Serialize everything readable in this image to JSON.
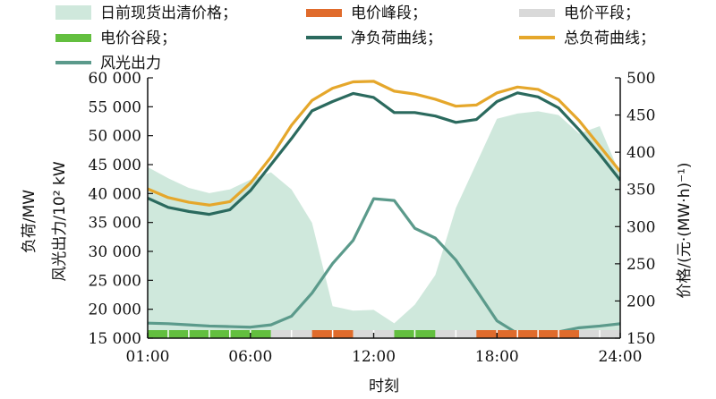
{
  "chart_data": {
    "type": "line",
    "x": [
      "01:00",
      "02:00",
      "03:00",
      "04:00",
      "05:00",
      "06:00",
      "07:00",
      "08:00",
      "09:00",
      "10:00",
      "11:00",
      "12:00",
      "13:00",
      "14:00",
      "15:00",
      "16:00",
      "17:00",
      "18:00",
      "19:00",
      "20:00",
      "21:00",
      "22:00",
      "23:00",
      "24:00"
    ],
    "x_ticks": [
      "01:00",
      "06:00",
      "12:00",
      "18:00",
      "24:00"
    ],
    "xlabel": "时刻",
    "ylabel_left": [
      "负荷/MW",
      "风光出力/10² kW"
    ],
    "ylabel_right": "价格/(元·(MW·h)⁻¹)",
    "ylim_left": [
      15000,
      60000
    ],
    "ylim_right": [
      150,
      500
    ],
    "yticks_left": [
      "15 000",
      "20 000",
      "25 000",
      "30 000",
      "35 000",
      "40 000",
      "45 000",
      "50 000",
      "55 000",
      "60 000"
    ],
    "yticks_right": [
      "150",
      "200",
      "250",
      "300",
      "350",
      "400",
      "450",
      "500"
    ],
    "series": [
      {
        "name": "日前现货出清价格",
        "axis": "right",
        "style": "area",
        "color": "#cfe8dc",
        "values": [
          380,
          365,
          352,
          345,
          350,
          363,
          373,
          350,
          305,
          193,
          187,
          188,
          170,
          195,
          235,
          325,
          385,
          445,
          452,
          455,
          450,
          425,
          435,
          370
        ]
      },
      {
        "name": "净负荷曲线",
        "axis": "left",
        "style": "line",
        "color": "#2b6a5e",
        "values": [
          39200,
          37600,
          36900,
          36400,
          37200,
          40500,
          45000,
          49500,
          54300,
          55900,
          57300,
          56600,
          54000,
          54000,
          53400,
          52300,
          52800,
          55900,
          57400,
          56700,
          54800,
          51000,
          46800,
          42300
        ]
      },
      {
        "name": "总负荷曲线",
        "axis": "left",
        "style": "line",
        "color": "#e5a72b",
        "values": [
          40800,
          39300,
          38500,
          38000,
          38600,
          41800,
          46300,
          51800,
          56100,
          58200,
          59300,
          59400,
          57700,
          57200,
          56300,
          55100,
          55300,
          57400,
          58400,
          58000,
          56200,
          52600,
          48200,
          43800
        ]
      },
      {
        "name": "风光出力",
        "axis": "left",
        "style": "line",
        "color": "#5b9a8b",
        "values": [
          17600,
          17500,
          17300,
          17100,
          17000,
          16900,
          17300,
          18800,
          22800,
          27900,
          31900,
          39100,
          38800,
          34000,
          32300,
          28500,
          23300,
          18000,
          15800,
          15800,
          16100,
          16800,
          17100,
          17500
        ]
      }
    ],
    "price_period_bar": {
      "legend": [
        {
          "name": "电价峰段",
          "color": "#e06b2c"
        },
        {
          "name": "电价平段",
          "color": "#d9d9d9"
        },
        {
          "name": "电价谷段",
          "color": "#63bf3f"
        }
      ],
      "segments": [
        {
          "period": "谷",
          "hours": [
            0,
            6
          ]
        },
        {
          "period": "平",
          "hours": [
            6,
            8
          ]
        },
        {
          "period": "峰",
          "hours": [
            8,
            10
          ]
        },
        {
          "period": "平",
          "hours": [
            10,
            12
          ]
        },
        {
          "period": "谷",
          "hours": [
            12,
            14
          ]
        },
        {
          "period": "平",
          "hours": [
            14,
            16
          ]
        },
        {
          "period": "峰",
          "hours": [
            16,
            21
          ]
        },
        {
          "period": "平",
          "hours": [
            21,
            23
          ]
        }
      ]
    },
    "legend_entries": [
      {
        "label": "日前现货出清价格；",
        "swatch": "area",
        "color": "#cfe8dc"
      },
      {
        "label": "电价峰段；",
        "swatch": "bar",
        "color": "#e06b2c"
      },
      {
        "label": "电价平段；",
        "swatch": "bar",
        "color": "#d9d9d9"
      },
      {
        "label": "电价谷段；",
        "swatch": "bar",
        "color": "#63bf3f"
      },
      {
        "label": "净负荷曲线；",
        "swatch": "line",
        "color": "#2b6a5e"
      },
      {
        "label": "总负荷曲线；",
        "swatch": "line",
        "color": "#e5a72b"
      },
      {
        "label": "风光出力",
        "swatch": "line",
        "color": "#5b9a8b"
      }
    ],
    "grid": false,
    "legend_placement": "top"
  }
}
